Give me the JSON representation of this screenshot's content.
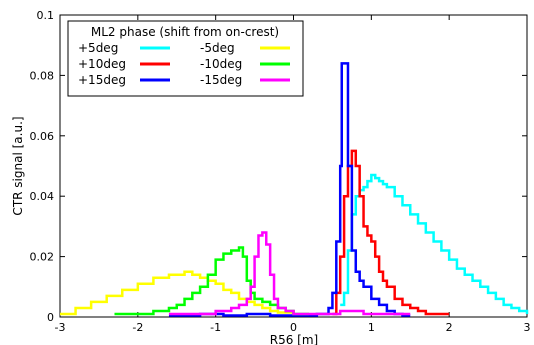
{
  "chart_data": {
    "type": "line",
    "xlabel": "R56 [m]",
    "ylabel": "CTR signal [a.u.]",
    "xlim": [
      -3,
      3
    ],
    "ylim": [
      0,
      0.1
    ],
    "xticks": [
      "-3",
      "-2",
      "-1",
      "0",
      "1",
      "2",
      "3"
    ],
    "yticks": [
      "0",
      "0.02",
      "0.04",
      "0.06",
      "0.08",
      "0.1"
    ],
    "grid": false,
    "legend": {
      "title": "ML2 phase (shift from on-crest)",
      "placement": "top-left"
    },
    "series": [
      {
        "name": "+5deg",
        "color": "#00ffff",
        "points": [
          [
            0.6,
            0.004
          ],
          [
            0.65,
            0.008
          ],
          [
            0.7,
            0.022
          ],
          [
            0.75,
            0.034
          ],
          [
            0.8,
            0.04
          ],
          [
            0.85,
            0.042
          ],
          [
            0.9,
            0.043
          ],
          [
            0.95,
            0.045
          ],
          [
            1.0,
            0.047
          ],
          [
            1.05,
            0.046
          ],
          [
            1.1,
            0.045
          ],
          [
            1.15,
            0.044
          ],
          [
            1.2,
            0.043
          ],
          [
            1.3,
            0.04
          ],
          [
            1.4,
            0.037
          ],
          [
            1.5,
            0.034
          ],
          [
            1.6,
            0.031
          ],
          [
            1.7,
            0.028
          ],
          [
            1.8,
            0.025
          ],
          [
            1.9,
            0.022
          ],
          [
            2.0,
            0.019
          ],
          [
            2.1,
            0.016
          ],
          [
            2.2,
            0.014
          ],
          [
            2.3,
            0.012
          ],
          [
            2.4,
            0.01
          ],
          [
            2.5,
            0.008
          ],
          [
            2.6,
            0.006
          ],
          [
            2.7,
            0.004
          ],
          [
            2.8,
            0.003
          ],
          [
            2.9,
            0.002
          ],
          [
            3.0,
            0.001
          ]
        ]
      },
      {
        "name": "+10deg",
        "color": "#ff0000",
        "points": [
          [
            0.5,
            0.001
          ],
          [
            0.55,
            0.008
          ],
          [
            0.6,
            0.02
          ],
          [
            0.65,
            0.04
          ],
          [
            0.7,
            0.05
          ],
          [
            0.75,
            0.055
          ],
          [
            0.8,
            0.05
          ],
          [
            0.85,
            0.04
          ],
          [
            0.9,
            0.03
          ],
          [
            0.95,
            0.027
          ],
          [
            1.0,
            0.025
          ],
          [
            1.05,
            0.02
          ],
          [
            1.1,
            0.015
          ],
          [
            1.15,
            0.012
          ],
          [
            1.2,
            0.01
          ],
          [
            1.3,
            0.006
          ],
          [
            1.4,
            0.004
          ],
          [
            1.5,
            0.003
          ],
          [
            1.6,
            0.002
          ],
          [
            1.7,
            0.001
          ],
          [
            1.8,
            0.001
          ],
          [
            1.9,
            0.001
          ],
          [
            2.0,
            0.001
          ]
        ]
      },
      {
        "name": "+15deg",
        "color": "#0000ff",
        "points": [
          [
            -1.6,
            0.0005
          ],
          [
            -1.2,
            0.001
          ],
          [
            -0.9,
            0.0005
          ],
          [
            -0.6,
            0.001
          ],
          [
            -0.3,
            0.0005
          ],
          [
            0.0,
            0.0005
          ],
          [
            0.3,
            0.001
          ],
          [
            0.45,
            0.003
          ],
          [
            0.5,
            0.008
          ],
          [
            0.55,
            0.025
          ],
          [
            0.6,
            0.05
          ],
          [
            0.62,
            0.084
          ],
          [
            0.66,
            0.084
          ],
          [
            0.7,
            0.05
          ],
          [
            0.75,
            0.022
          ],
          [
            0.8,
            0.015
          ],
          [
            0.85,
            0.012
          ],
          [
            0.9,
            0.01
          ],
          [
            1.0,
            0.006
          ],
          [
            1.1,
            0.004
          ],
          [
            1.2,
            0.002
          ],
          [
            1.3,
            0.001
          ],
          [
            1.4,
            0.0005
          ],
          [
            1.5,
            0.0005
          ]
        ]
      },
      {
        "name": "-5deg",
        "color": "#ffff00",
        "points": [
          [
            -3.0,
            0.001
          ],
          [
            -2.8,
            0.003
          ],
          [
            -2.6,
            0.005
          ],
          [
            -2.4,
            0.007
          ],
          [
            -2.2,
            0.009
          ],
          [
            -2.0,
            0.011
          ],
          [
            -1.8,
            0.013
          ],
          [
            -1.6,
            0.014
          ],
          [
            -1.4,
            0.015
          ],
          [
            -1.3,
            0.014
          ],
          [
            -1.2,
            0.013
          ],
          [
            -1.1,
            0.012
          ],
          [
            -1.0,
            0.011
          ],
          [
            -0.9,
            0.009
          ],
          [
            -0.8,
            0.008
          ],
          [
            -0.7,
            0.006
          ],
          [
            -0.6,
            0.005
          ],
          [
            -0.5,
            0.004
          ],
          [
            -0.4,
            0.003
          ],
          [
            -0.3,
            0.002
          ],
          [
            -0.2,
            0.0015
          ],
          [
            0.0,
            0.001
          ]
        ]
      },
      {
        "name": "-10deg",
        "color": "#00ff00",
        "points": [
          [
            -2.3,
            0.001
          ],
          [
            -2.0,
            0.001
          ],
          [
            -1.8,
            0.002
          ],
          [
            -1.6,
            0.003
          ],
          [
            -1.5,
            0.004
          ],
          [
            -1.4,
            0.006
          ],
          [
            -1.3,
            0.008
          ],
          [
            -1.2,
            0.01
          ],
          [
            -1.1,
            0.014
          ],
          [
            -1.0,
            0.019
          ],
          [
            -0.9,
            0.021
          ],
          [
            -0.8,
            0.022
          ],
          [
            -0.7,
            0.023
          ],
          [
            -0.65,
            0.02
          ],
          [
            -0.6,
            0.012
          ],
          [
            -0.55,
            0.008
          ],
          [
            -0.5,
            0.006
          ],
          [
            -0.4,
            0.005
          ],
          [
            -0.3,
            0.004
          ],
          [
            -0.2,
            0.003
          ],
          [
            -0.1,
            0.002
          ],
          [
            0.0,
            0.001
          ],
          [
            0.2,
            0.001
          ]
        ]
      },
      {
        "name": "-15deg",
        "color": "#ff00ff",
        "points": [
          [
            -1.6,
            0.001
          ],
          [
            -1.3,
            0.001
          ],
          [
            -1.0,
            0.002
          ],
          [
            -0.8,
            0.003
          ],
          [
            -0.7,
            0.004
          ],
          [
            -0.6,
            0.006
          ],
          [
            -0.55,
            0.01
          ],
          [
            -0.5,
            0.02
          ],
          [
            -0.45,
            0.027
          ],
          [
            -0.4,
            0.028
          ],
          [
            -0.35,
            0.024
          ],
          [
            -0.3,
            0.014
          ],
          [
            -0.25,
            0.006
          ],
          [
            -0.2,
            0.003
          ],
          [
            -0.1,
            0.002
          ],
          [
            0.0,
            0.001
          ],
          [
            0.3,
            0.001
          ],
          [
            0.6,
            0.002
          ],
          [
            0.9,
            0.001
          ],
          [
            1.2,
            0.001
          ],
          [
            1.5,
            0.001
          ]
        ]
      }
    ]
  }
}
